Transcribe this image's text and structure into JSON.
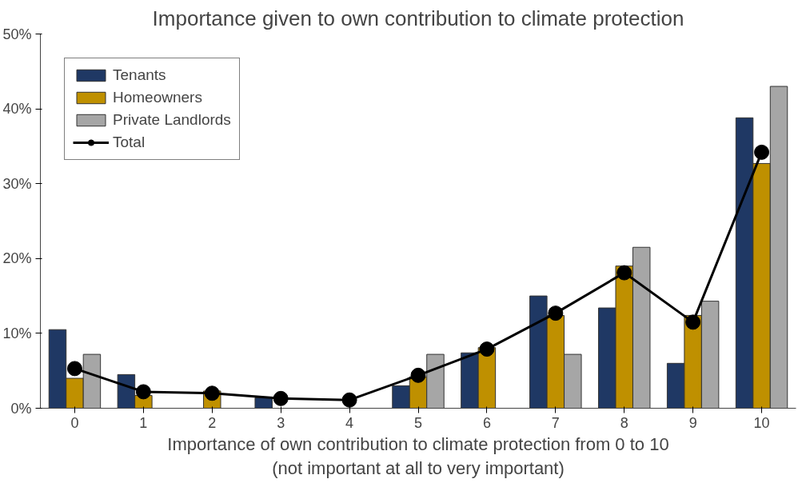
{
  "chart_data": {
    "type": "bar",
    "title": "Importance given to own contribution to climate protection",
    "xlabel": "Importance of own contribution to climate protection from 0 to 10\n(not important at all to very important)",
    "categories": [
      "0",
      "1",
      "2",
      "3",
      "4",
      "5",
      "6",
      "7",
      "8",
      "9",
      "10"
    ],
    "series": [
      {
        "name": "Tenants",
        "color": "#1f3864",
        "values": [
          10.5,
          4.5,
          null,
          1.4,
          null,
          3.0,
          7.4,
          15.0,
          13.4,
          6.0,
          38.8
        ]
      },
      {
        "name": "Homeowners",
        "color": "#bf9000",
        "values": [
          4.0,
          1.7,
          2.3,
          null,
          null,
          4.2,
          8.1,
          12.4,
          19.0,
          12.4,
          32.7
        ]
      },
      {
        "name": "Private Landlords",
        "color": "#a6a6a6",
        "values": [
          7.2,
          null,
          null,
          null,
          null,
          7.2,
          null,
          7.2,
          21.5,
          14.3,
          43.0
        ]
      },
      {
        "name": "Total",
        "type": "line",
        "color": "#000000",
        "marker": "circle",
        "values": [
          5.3,
          2.2,
          2.0,
          1.3,
          1.1,
          4.4,
          7.9,
          12.7,
          18.1,
          11.5,
          34.2
        ]
      }
    ],
    "ylim": [
      0,
      50
    ],
    "yticks": [
      {
        "value": 0,
        "label": "0%"
      },
      {
        "value": 10,
        "label": "10%"
      },
      {
        "value": 20,
        "label": "20%"
      },
      {
        "value": 30,
        "label": "30%"
      },
      {
        "value": 40,
        "label": "40%"
      },
      {
        "value": 50,
        "label": "50%"
      }
    ],
    "grid": false,
    "legend": "top left"
  }
}
